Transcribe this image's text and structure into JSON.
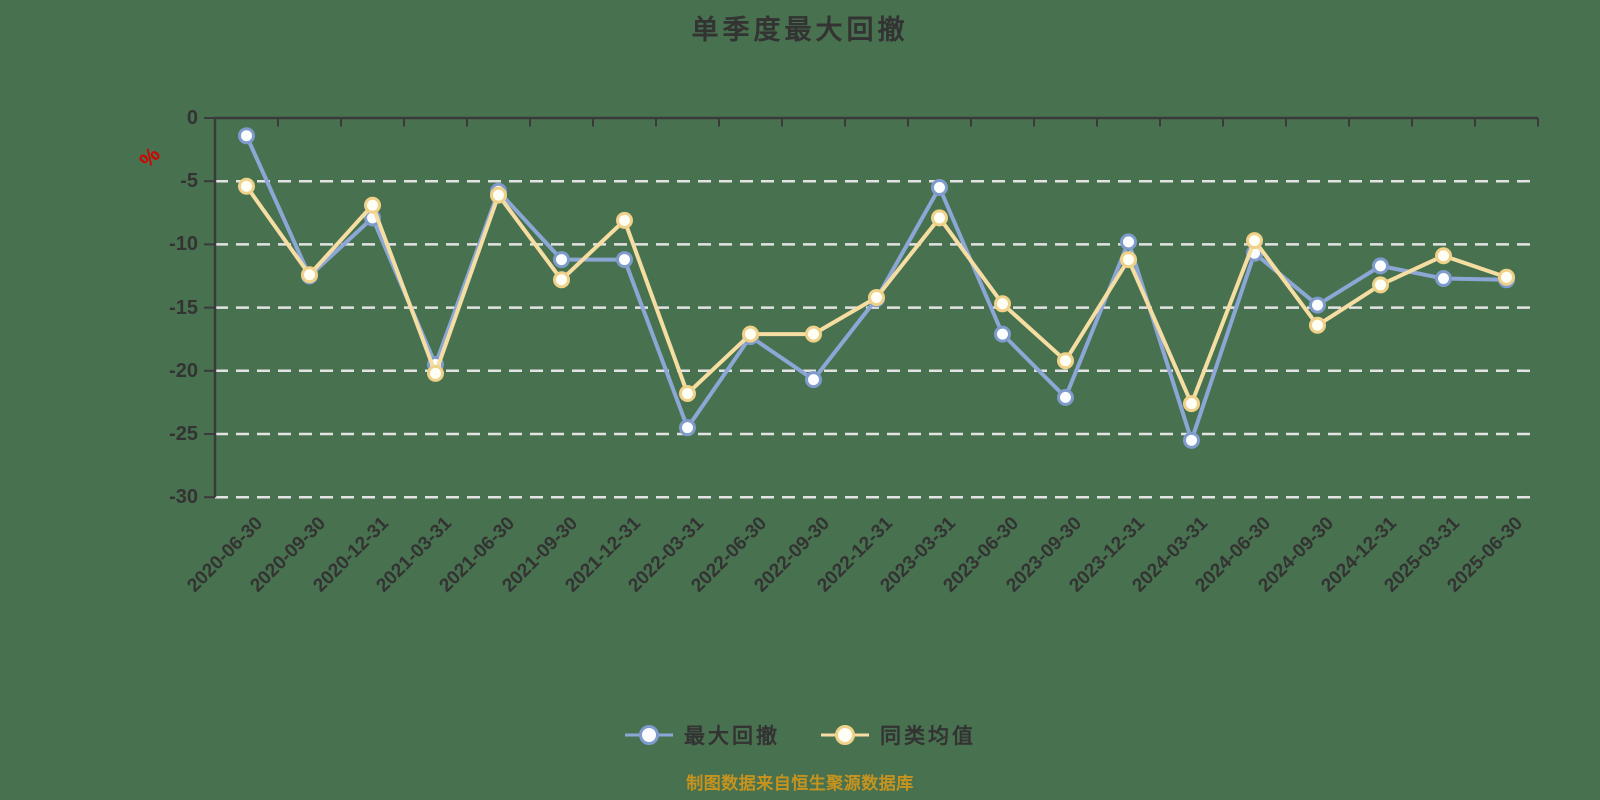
{
  "title": "单季度最大回撤",
  "footer": "制图数据来自恒生聚源数据库",
  "y_axis": {
    "unit": "%",
    "labels": [
      "0",
      "-5",
      "-10",
      "-15",
      "-20",
      "-25",
      "-30"
    ],
    "min": -30,
    "max": 0,
    "step": 5
  },
  "chart_data": {
    "type": "line",
    "title": "单季度最大回撤",
    "categories": [
      "2020-06-30",
      "2020-09-30",
      "2020-12-31",
      "2021-03-31",
      "2021-06-30",
      "2021-09-30",
      "2021-12-31",
      "2022-03-31",
      "2022-06-30",
      "2022-09-30",
      "2022-12-31",
      "2023-03-31",
      "2023-06-30",
      "2023-09-30",
      "2023-12-31",
      "2024-03-31",
      "2024-06-30",
      "2024-09-30",
      "2024-12-31",
      "2025-03-31",
      "2025-06-30"
    ],
    "series": [
      {
        "name": "最大回撤",
        "color": "#8CA7D5",
        "marker_stroke": "#7E9BCB",
        "marker_fill": "#FBFDFF",
        "values": [
          -1.4,
          -12.5,
          -7.9,
          -19.5,
          -5.8,
          -11.2,
          -11.2,
          -24.5,
          -17.3,
          -20.7,
          -14.3,
          -5.5,
          -17.1,
          -22.1,
          -9.8,
          -25.5,
          -10.7,
          -14.8,
          -11.7,
          -12.7,
          -12.8
        ]
      },
      {
        "name": "同类均值",
        "color": "#F6DEA3",
        "marker_stroke": "#F0D189",
        "marker_fill": "#FFFEF5",
        "values": [
          -5.4,
          -12.4,
          -6.9,
          -20.2,
          -6.1,
          -12.8,
          -8.1,
          -21.8,
          -17.1,
          -17.1,
          -14.2,
          -7.9,
          -14.7,
          -19.2,
          -11.2,
          -22.6,
          -9.7,
          -16.4,
          -13.2,
          -10.9,
          -12.6
        ]
      }
    ],
    "ylim": [
      -30,
      0
    ],
    "y_tick_step": 5,
    "x_label_rotation": -45,
    "grid": "horizontal-dashed",
    "legend_position": "bottom"
  },
  "colors": {
    "background": "#48714F",
    "text": "#333333",
    "grid": "#E3E3E3",
    "axis": "#3A3A3A",
    "unit_label": "#D60000",
    "footer": "#C6941E"
  }
}
